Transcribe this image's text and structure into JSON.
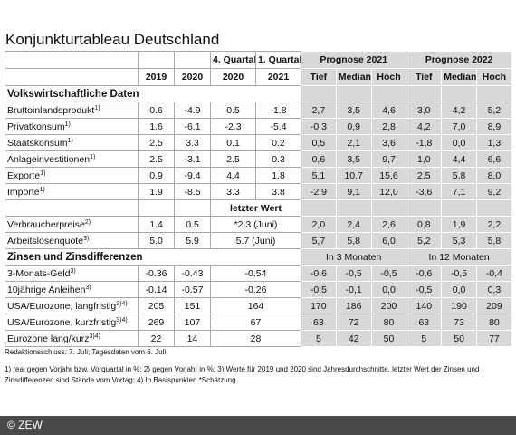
{
  "title": "Konjunkturtableau Deutschland",
  "table": {
    "header_top": {
      "quarter4": "4. Quartal",
      "quarter1": "1. Quartal",
      "forecast2021": "Prognose 2021",
      "forecast2022": "Prognose 2022"
    },
    "header_bottom": [
      "2019",
      "2020",
      "2020",
      "2021",
      "Tief",
      "Median",
      "Hoch",
      "Tief",
      "Median",
      "Hoch"
    ],
    "rows": [
      {
        "section": "Volkswirtschaftliche Daten"
      },
      {
        "label": "Bruttoinlandsprodukt",
        "note": "1)",
        "values": [
          "0.6",
          "-4.9",
          "0.5",
          "-1.8",
          "2,7",
          "3,5",
          "4,6",
          "3,0",
          "4,2",
          "5,2"
        ]
      },
      {
        "label": "Privatkonsum",
        "note": "1)",
        "values": [
          "1.6",
          "-6.1",
          "-2.3",
          "-5.4",
          "-0,3",
          "0,9",
          "2,8",
          "4,2",
          "7,0",
          "8,9"
        ]
      },
      {
        "label": "Staatskonsum",
        "note": "1)",
        "values": [
          "2.5",
          "3.3",
          "0.1",
          "0.2",
          "0,5",
          "2,1",
          "3,6",
          "-1,8",
          "0,0",
          "1,3"
        ]
      },
      {
        "label": "Anlageinvestitionen",
        "note": "1)",
        "values": [
          "2.5",
          "-3.1",
          "2.5",
          "0.3",
          "0,6",
          "3,5",
          "9,7",
          "1,0",
          "4,4",
          "6,6"
        ]
      },
      {
        "label": "Exporte",
        "note": "1)",
        "values": [
          "0.9",
          "-9.4",
          "4.4",
          "1.8",
          "5,1",
          "10,7",
          "15,6",
          "2,5",
          "5,8",
          "8,0"
        ]
      },
      {
        "label": "Importe",
        "note": "1)",
        "values": [
          "1.9",
          "-8.5",
          "3.3",
          "3.8",
          "-2,9",
          "9,1",
          "12,0",
          "-3,6",
          "7,1",
          "9,2"
        ]
      },
      {
        "span_label": "letzter Wert"
      },
      {
        "label": "Verbraucherpreise",
        "note": "2)",
        "values": [
          "1.4",
          "0.5",
          "*2.3 (Juni)",
          "2,0",
          "2,4",
          "2,6",
          "0,8",
          "1,9",
          "2,2"
        ]
      },
      {
        "label": "Arbeitslosenquote",
        "note": "3)",
        "values": [
          "5.0",
          "5.9",
          "5.7 (Juni)",
          "5,7",
          "5,8",
          "6,0",
          "5,2",
          "5,3",
          "5,8"
        ]
      },
      {
        "section": "Zinsen und Zinsdifferenzen",
        "horizons": [
          "In 3 Monaten",
          "In 12 Monaten"
        ]
      },
      {
        "label": "3-Monats-Geld",
        "note": "3)",
        "values": [
          "-0.36",
          "-0.43",
          "-0.54",
          "-0,6",
          "-0,5",
          "-0,5",
          "-0,6",
          "-0,5",
          "-0,4"
        ]
      },
      {
        "label": "10jährige Anleihen",
        "note": "3)",
        "values": [
          "-0.14",
          "-0.57",
          "-0.26",
          "-0,5",
          "-0,1",
          "0,0",
          "-0,5",
          "0,0",
          "0,3"
        ]
      },
      {
        "label": "USA/Eurozone, langfristig",
        "note": "3)4)",
        "values": [
          "205",
          "151",
          "164",
          "170",
          "186",
          "200",
          "140",
          "190",
          "209"
        ]
      },
      {
        "label": "USA/Eurozone, kurzfristig",
        "note": "3)4)",
        "values": [
          "269",
          "107",
          "67",
          "63",
          "72",
          "80",
          "63",
          "73",
          "80"
        ]
      },
      {
        "label": "Eurozone lang/kurz",
        "note": "3)4)",
        "values": [
          "22",
          "14",
          "28",
          "5",
          "42",
          "50",
          "5",
          "50",
          "77"
        ]
      }
    ]
  },
  "footer": {
    "deadline": "Redaktionsschluss: 7. Juli; Tagesdaten vom 6. Juli",
    "notes": "1) real gegen Vorjahr bzw. Vorquartal in %; 2) gegen Vorjahr in %; 3) Werte für 2019 und 2020 sind Jahresdurchschnitte. letzter Wert der Zinsen und Zinsdifferenzen sind Stände vom Vortag; 4) In Basispunkten *Schätzung",
    "copyright": "© ZEW"
  }
}
